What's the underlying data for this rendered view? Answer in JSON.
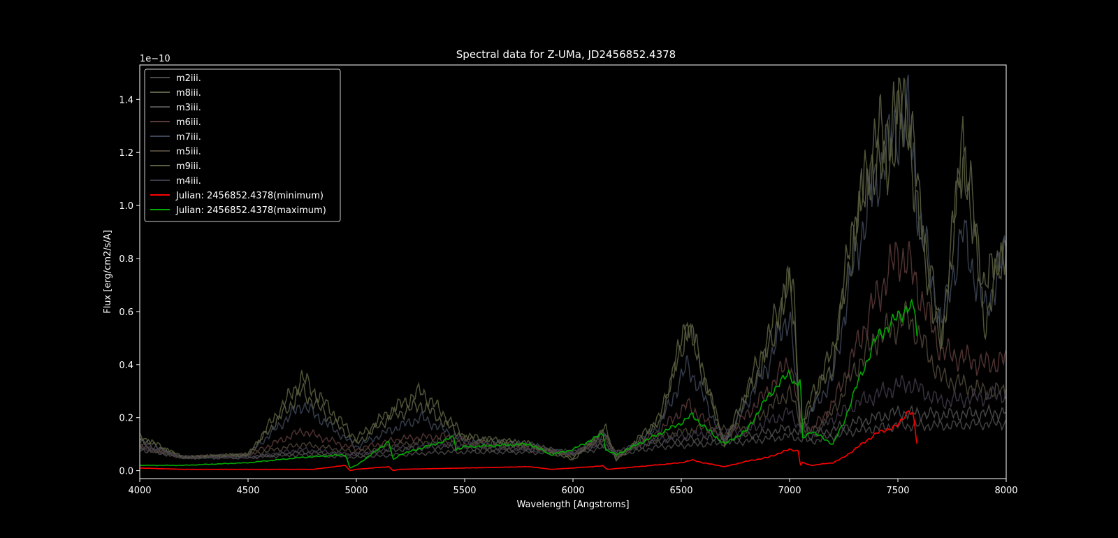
{
  "chart_data": {
    "type": "line",
    "title": "Spectral data for Z-UMa, JD2456852.4378",
    "xlabel": "Wavelength [Angstroms]",
    "ylabel": "Flux [erg/cm2/s/A]",
    "y_offset_label": "1e−10",
    "xlim": [
      4000,
      8000
    ],
    "ylim": [
      -0.03,
      1.53
    ],
    "y_scale_exponent": -10,
    "x_ticks": [
      4000,
      4500,
      5000,
      5500,
      6000,
      6500,
      7000,
      7500,
      8000
    ],
    "x_tick_labels": [
      "4000",
      "4500",
      "5000",
      "5500",
      "6000",
      "6500",
      "7000",
      "7500",
      "8000"
    ],
    "y_ticks": [
      0.0,
      0.2,
      0.4,
      0.6,
      0.8,
      1.0,
      1.2,
      1.4
    ],
    "y_tick_labels": [
      "0.0",
      "0.2",
      "0.4",
      "0.6",
      "0.8",
      "1.0",
      "1.2",
      "1.4"
    ],
    "grid": false,
    "legend_position": "upper-left",
    "background": "#000000",
    "series": [
      {
        "name": "m2iii.",
        "color": "#4b4b4b",
        "x": [
          4000,
          4200,
          4500,
          4750,
          5000,
          5200,
          5400,
          5600,
          5800,
          6000,
          6150,
          6200,
          6400,
          6600,
          6800,
          7000,
          7050,
          7100,
          7300,
          7500,
          7700,
          8000
        ],
        "y": [
          0.08,
          0.05,
          0.05,
          0.06,
          0.05,
          0.06,
          0.07,
          0.07,
          0.07,
          0.06,
          0.09,
          0.06,
          0.09,
          0.1,
          0.11,
          0.13,
          0.12,
          0.11,
          0.15,
          0.17,
          0.17,
          0.18
        ]
      },
      {
        "name": "m8iii.",
        "color": "#5e6146",
        "x": [
          4000,
          4200,
          4500,
          4750,
          5000,
          5150,
          5300,
          5500,
          5800,
          6000,
          6150,
          6200,
          6400,
          6530,
          6700,
          6900,
          7000,
          7020,
          7050,
          7100,
          7200,
          7300,
          7400,
          7500,
          7550,
          7600,
          7700,
          7800,
          7900,
          8000
        ],
        "y": [
          0.12,
          0.05,
          0.06,
          0.3,
          0.1,
          0.2,
          0.25,
          0.12,
          0.1,
          0.05,
          0.15,
          0.04,
          0.18,
          0.55,
          0.1,
          0.45,
          0.7,
          0.62,
          0.15,
          0.25,
          0.4,
          0.9,
          1.25,
          1.35,
          1.37,
          1.0,
          0.5,
          1.23,
          0.7,
          0.85
        ]
      },
      {
        "name": "m3iii.",
        "color": "#505050",
        "x": [
          4000,
          4200,
          4500,
          4750,
          5000,
          5200,
          5400,
          5600,
          5800,
          6000,
          6150,
          6200,
          6400,
          6600,
          6800,
          7000,
          7050,
          7100,
          7300,
          7500,
          7700,
          8000
        ],
        "y": [
          0.09,
          0.05,
          0.05,
          0.07,
          0.06,
          0.08,
          0.09,
          0.08,
          0.08,
          0.07,
          0.1,
          0.07,
          0.11,
          0.12,
          0.13,
          0.16,
          0.14,
          0.13,
          0.18,
          0.22,
          0.21,
          0.22
        ]
      },
      {
        "name": "m6iii.",
        "color": "#5a3a38",
        "x": [
          4000,
          4200,
          4500,
          4750,
          5000,
          5200,
          5400,
          5600,
          5800,
          6000,
          6150,
          6200,
          6400,
          6530,
          6700,
          6900,
          7000,
          7050,
          7100,
          7200,
          7300,
          7400,
          7500,
          7550,
          7700,
          7900,
          8000
        ],
        "y": [
          0.1,
          0.05,
          0.06,
          0.15,
          0.08,
          0.12,
          0.13,
          0.1,
          0.09,
          0.06,
          0.13,
          0.05,
          0.15,
          0.25,
          0.12,
          0.3,
          0.42,
          0.2,
          0.15,
          0.25,
          0.45,
          0.65,
          0.82,
          0.78,
          0.45,
          0.4,
          0.42
        ]
      },
      {
        "name": "m7iii.",
        "color": "#3d4656",
        "x": [
          4000,
          4200,
          4500,
          4750,
          5000,
          5150,
          5300,
          5500,
          5800,
          6000,
          6150,
          6200,
          6400,
          6530,
          6700,
          6900,
          7000,
          7050,
          7100,
          7200,
          7300,
          7400,
          7500,
          7550,
          7600,
          7700,
          7800,
          7900,
          8000
        ],
        "y": [
          0.11,
          0.05,
          0.06,
          0.25,
          0.09,
          0.15,
          0.2,
          0.11,
          0.1,
          0.06,
          0.14,
          0.05,
          0.17,
          0.4,
          0.11,
          0.4,
          0.6,
          0.15,
          0.22,
          0.35,
          0.8,
          1.1,
          1.3,
          1.33,
          0.95,
          0.55,
          0.9,
          0.6,
          0.82
        ]
      },
      {
        "name": "m5iii.",
        "color": "#4f4638",
        "x": [
          4000,
          4200,
          4500,
          4750,
          5000,
          5200,
          5400,
          5600,
          5800,
          6000,
          6150,
          6200,
          6400,
          6600,
          6800,
          7000,
          7050,
          7100,
          7200,
          7300,
          7400,
          7500,
          7550,
          7700,
          7900,
          8000
        ],
        "y": [
          0.09,
          0.05,
          0.06,
          0.1,
          0.07,
          0.1,
          0.11,
          0.09,
          0.09,
          0.06,
          0.12,
          0.06,
          0.13,
          0.16,
          0.16,
          0.3,
          0.18,
          0.14,
          0.22,
          0.38,
          0.5,
          0.55,
          0.58,
          0.35,
          0.3,
          0.3
        ]
      },
      {
        "name": "m9iii.",
        "color": "#5c6040",
        "x": [
          4000,
          4200,
          4500,
          4750,
          5000,
          5150,
          5300,
          5500,
          5800,
          6000,
          6150,
          6200,
          6400,
          6530,
          6700,
          6900,
          7000,
          7020,
          7050,
          7100,
          7200,
          7300,
          7400,
          7450,
          7500,
          7550,
          7600,
          7700,
          7800,
          7900,
          8000
        ],
        "y": [
          0.13,
          0.05,
          0.06,
          0.35,
          0.12,
          0.22,
          0.3,
          0.13,
          0.1,
          0.04,
          0.16,
          0.04,
          0.2,
          0.57,
          0.1,
          0.5,
          0.72,
          0.65,
          0.15,
          0.28,
          0.45,
          0.95,
          1.2,
          1.1,
          1.37,
          1.3,
          0.9,
          0.45,
          1.24,
          0.55,
          0.88
        ]
      },
      {
        "name": "m4iii.",
        "color": "#3f3848",
        "x": [
          4000,
          4200,
          4500,
          4750,
          5000,
          5200,
          5400,
          5600,
          5800,
          6000,
          6150,
          6200,
          6400,
          6600,
          6800,
          7000,
          7050,
          7100,
          7300,
          7500,
          7550,
          7700,
          8000
        ],
        "y": [
          0.09,
          0.05,
          0.05,
          0.08,
          0.06,
          0.09,
          0.1,
          0.09,
          0.08,
          0.07,
          0.11,
          0.07,
          0.12,
          0.14,
          0.15,
          0.22,
          0.16,
          0.14,
          0.25,
          0.32,
          0.33,
          0.26,
          0.29
        ]
      },
      {
        "name": "Julian: 2456852.4378(minimum)",
        "color": "#ff0000",
        "x": [
          4000,
          4200,
          4500,
          4800,
          4950,
          4970,
          5000,
          5150,
          5170,
          5200,
          5500,
          5800,
          5900,
          6000,
          6140,
          6150,
          6160,
          6300,
          6500,
          6550,
          6600,
          6700,
          6800,
          6900,
          7000,
          7040,
          7050,
          7060,
          7100,
          7200,
          7250,
          7300,
          7400,
          7500,
          7550,
          7570,
          7580,
          7590
        ],
        "y": [
          0.01,
          0.005,
          0.005,
          0.005,
          0.02,
          0.0,
          0.005,
          0.015,
          0.0,
          0.005,
          0.01,
          0.015,
          0.005,
          0.01,
          0.018,
          0.01,
          0.005,
          0.015,
          0.03,
          0.04,
          0.03,
          0.015,
          0.035,
          0.05,
          0.08,
          0.075,
          0.02,
          0.03,
          0.02,
          0.03,
          0.05,
          0.08,
          0.14,
          0.17,
          0.23,
          0.21,
          0.15,
          0.09
        ]
      },
      {
        "name": "Julian: 2456852.4378(maximum)",
        "color": "#00aa00",
        "x": [
          4000,
          4200,
          4500,
          4750,
          4950,
          4970,
          5000,
          5150,
          5170,
          5200,
          5400,
          5450,
          5460,
          5500,
          5800,
          5900,
          6000,
          6140,
          6150,
          6200,
          6300,
          6500,
          6550,
          6600,
          6700,
          6800,
          6900,
          7000,
          7030,
          7050,
          7060,
          7100,
          7200,
          7250,
          7300,
          7400,
          7500,
          7550,
          7580,
          7590
        ],
        "y": [
          0.02,
          0.02,
          0.03,
          0.05,
          0.06,
          0.01,
          0.02,
          0.11,
          0.04,
          0.06,
          0.11,
          0.13,
          0.08,
          0.09,
          0.1,
          0.06,
          0.08,
          0.14,
          0.08,
          0.06,
          0.1,
          0.18,
          0.21,
          0.17,
          0.1,
          0.15,
          0.28,
          0.37,
          0.32,
          0.34,
          0.12,
          0.15,
          0.1,
          0.18,
          0.3,
          0.5,
          0.58,
          0.62,
          0.6,
          0.47
        ]
      }
    ]
  }
}
